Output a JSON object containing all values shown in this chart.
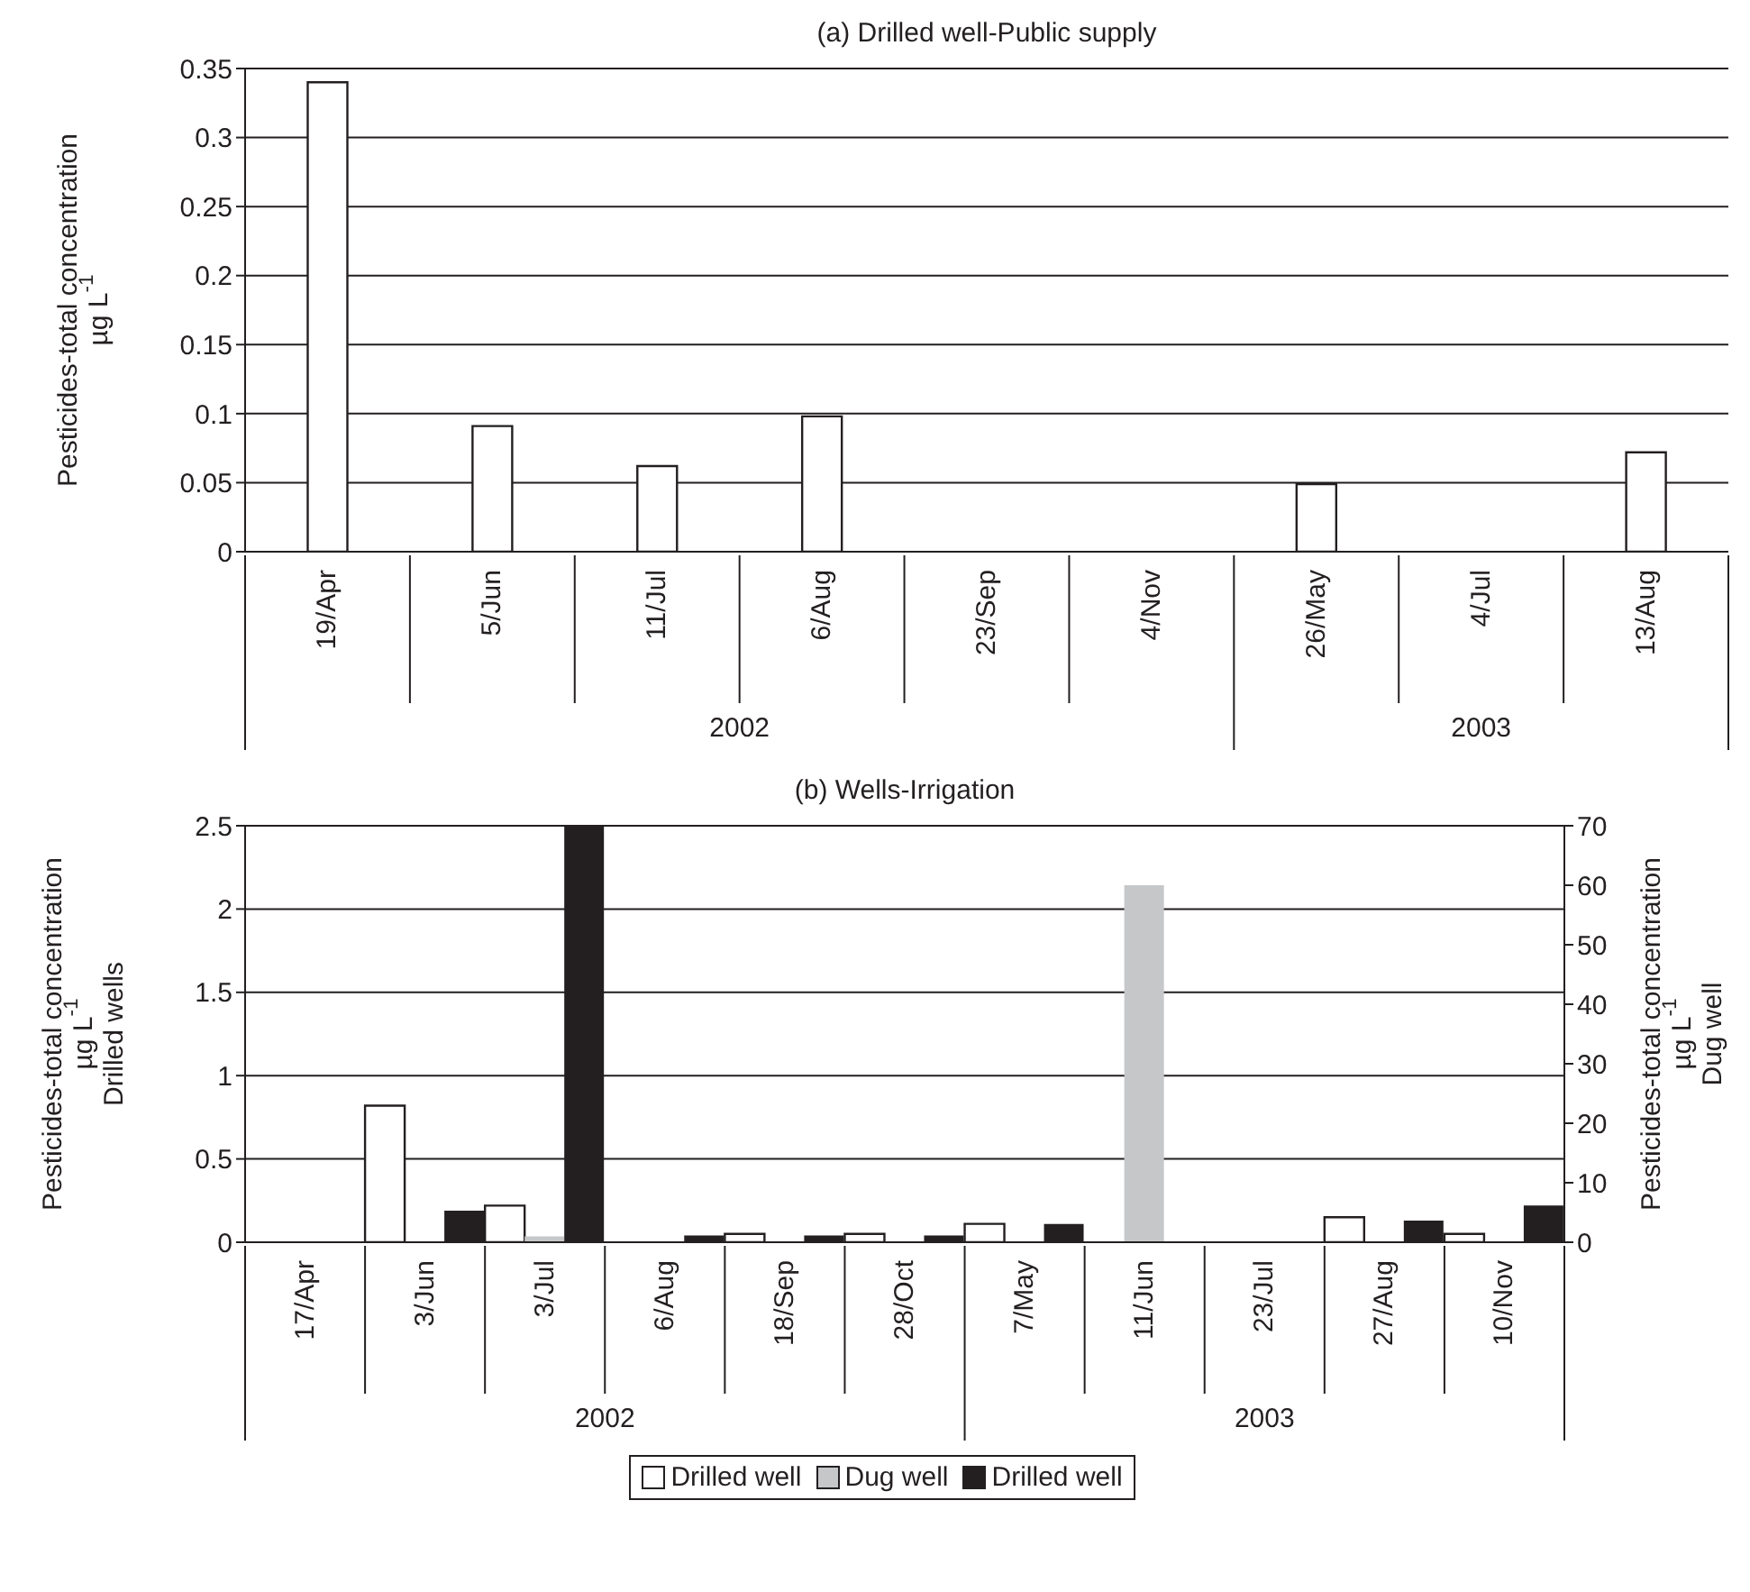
{
  "chart_data": [
    {
      "type": "bar",
      "title": "(a) Drilled well-Public supply",
      "ylabel": "Pesticides-total concentration\nµg L$^{-1}$",
      "categories": [
        "19/Apr",
        "5/Jun",
        "11/Jul",
        "6/Aug",
        "23/Sep",
        "4/Nov",
        "26/May",
        "4/Jul",
        "13/Aug"
      ],
      "series": [
        {
          "color": "#ffffff",
          "values": [
            0.34,
            0.091,
            0.062,
            0.098,
            null,
            null,
            0.049,
            null,
            0.072
          ]
        }
      ],
      "ylim": [
        0,
        0.35
      ],
      "yticks": [
        0,
        0.05,
        0.1,
        0.15,
        0.2,
        0.25,
        0.3,
        0.35
      ],
      "grid": "y",
      "legend": false,
      "annotations": [
        "2002",
        "2003"
      ]
    },
    {
      "type": "bar",
      "title": "(b) Wells-Irrigation",
      "ylabel": "Pesticides-total concentration\nµg L$^{-1}$\nDrilled wells",
      "y2label": "Pesticides-total concentration\nµg L$^{-1}$\nDug well",
      "categories": [
        "17/Apr",
        "3/Jun",
        "3/Jul",
        "6/Aug",
        "18/Sep",
        "28/Oct",
        "7/May",
        "11/Jun",
        "23/Jul",
        "27/Aug",
        "10/Nov"
      ],
      "series": [
        {
          "name": "Drilled well",
          "color": "#ffffff",
          "values": [
            null,
            0.82,
            0.22,
            null,
            0.05,
            0.05,
            0.11,
            null,
            null,
            0.15,
            0.05
          ]
        },
        {
          "name": "Dug well",
          "color": "#c6c7c9",
          "axis": "y2",
          "values": [
            null,
            null,
            1,
            null,
            null,
            null,
            null,
            60,
            null,
            null,
            null
          ]
        },
        {
          "name": "Drilled well",
          "color": "#231f20",
          "values": [
            null,
            0.19,
            2.5,
            0.04,
            0.04,
            0.04,
            0.11,
            null,
            null,
            0.13,
            0.22
          ]
        }
      ],
      "ylim": [
        0,
        2.5
      ],
      "yticks": [
        0,
        0.5,
        1,
        1.5,
        2,
        2.5
      ],
      "y2lim": [
        0,
        70
      ],
      "y2ticks": [
        0,
        10,
        20,
        30,
        40,
        50,
        60,
        70
      ],
      "grid": "y",
      "legend": "bottom",
      "annotations": [
        "2002",
        "2003"
      ]
    }
  ]
}
